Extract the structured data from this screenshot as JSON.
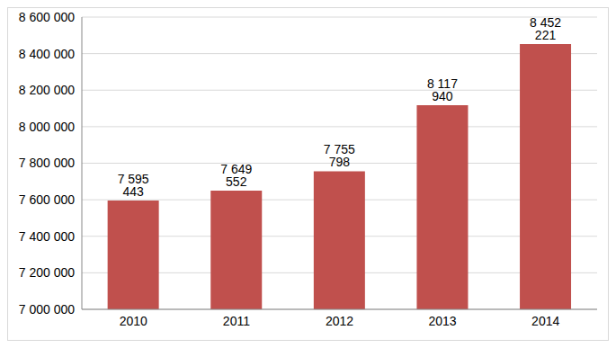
{
  "chart_data": {
    "type": "bar",
    "categories": [
      "2010",
      "2011",
      "2012",
      "2013",
      "2014"
    ],
    "values": [
      7595443,
      7649552,
      7755798,
      8117940,
      8452221
    ],
    "value_labels": [
      "7 595 443",
      "7 649 552",
      "7 755 798",
      "8 117 940",
      "8 452 221"
    ],
    "data_labels": true,
    "color": "#c0504d",
    "ylim": [
      7000000,
      8600000
    ],
    "yticks": [
      {
        "value": 7000000,
        "label": "7 000 000"
      },
      {
        "value": 7200000,
        "label": "7 200 000"
      },
      {
        "value": 7400000,
        "label": "7 400 000"
      },
      {
        "value": 7600000,
        "label": "7 600 000"
      },
      {
        "value": 7800000,
        "label": "7 800 000"
      },
      {
        "value": 8000000,
        "label": "8 000 000"
      },
      {
        "value": 8200000,
        "label": "8 200 000"
      },
      {
        "value": 8400000,
        "label": "8 400 000"
      },
      {
        "value": 8600000,
        "label": "8 600 000"
      }
    ],
    "grid": true
  }
}
